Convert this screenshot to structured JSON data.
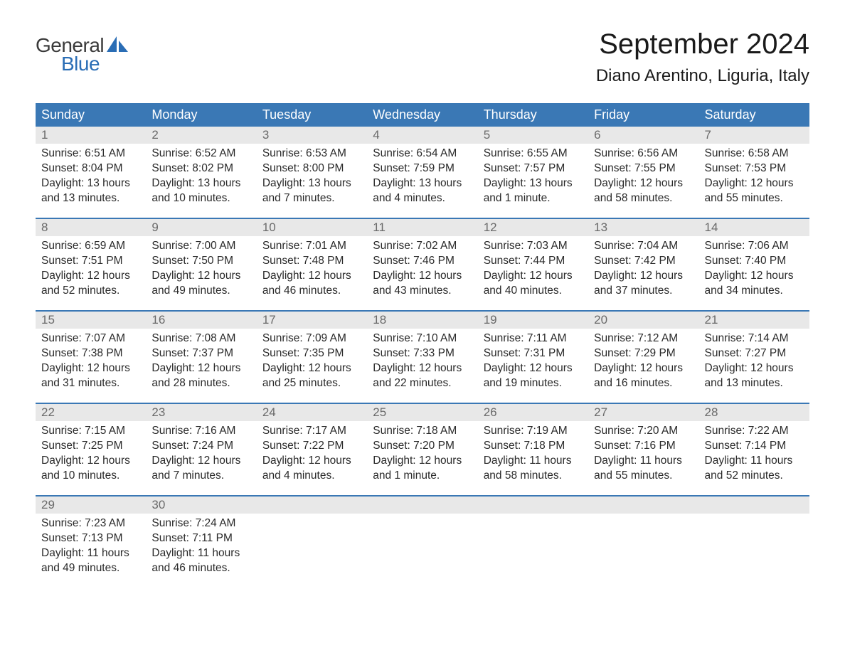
{
  "logo": {
    "text1": "General",
    "text2": "Blue",
    "sail_color": "#2a6db5"
  },
  "title": "September 2024",
  "location": "Diano Arentino, Liguria, Italy",
  "colors": {
    "header_bg": "#3a78b5",
    "header_text": "#ffffff",
    "daynum_bg": "#e8e8e8",
    "daynum_text": "#6a6a6a",
    "body_text": "#2a2a2a",
    "week_border": "#3a78b5",
    "background": "#ffffff"
  },
  "typography": {
    "title_fontsize": 40,
    "location_fontsize": 24,
    "weekday_fontsize": 18,
    "daynum_fontsize": 17,
    "content_fontsize": 15.5
  },
  "weekdays": [
    "Sunday",
    "Monday",
    "Tuesday",
    "Wednesday",
    "Thursday",
    "Friday",
    "Saturday"
  ],
  "weeks": [
    [
      {
        "n": "1",
        "sunrise": "6:51 AM",
        "sunset": "8:04 PM",
        "daylight": "13 hours and 13 minutes."
      },
      {
        "n": "2",
        "sunrise": "6:52 AM",
        "sunset": "8:02 PM",
        "daylight": "13 hours and 10 minutes."
      },
      {
        "n": "3",
        "sunrise": "6:53 AM",
        "sunset": "8:00 PM",
        "daylight": "13 hours and 7 minutes."
      },
      {
        "n": "4",
        "sunrise": "6:54 AM",
        "sunset": "7:59 PM",
        "daylight": "13 hours and 4 minutes."
      },
      {
        "n": "5",
        "sunrise": "6:55 AM",
        "sunset": "7:57 PM",
        "daylight": "13 hours and 1 minute."
      },
      {
        "n": "6",
        "sunrise": "6:56 AM",
        "sunset": "7:55 PM",
        "daylight": "12 hours and 58 minutes."
      },
      {
        "n": "7",
        "sunrise": "6:58 AM",
        "sunset": "7:53 PM",
        "daylight": "12 hours and 55 minutes."
      }
    ],
    [
      {
        "n": "8",
        "sunrise": "6:59 AM",
        "sunset": "7:51 PM",
        "daylight": "12 hours and 52 minutes."
      },
      {
        "n": "9",
        "sunrise": "7:00 AM",
        "sunset": "7:50 PM",
        "daylight": "12 hours and 49 minutes."
      },
      {
        "n": "10",
        "sunrise": "7:01 AM",
        "sunset": "7:48 PM",
        "daylight": "12 hours and 46 minutes."
      },
      {
        "n": "11",
        "sunrise": "7:02 AM",
        "sunset": "7:46 PM",
        "daylight": "12 hours and 43 minutes."
      },
      {
        "n": "12",
        "sunrise": "7:03 AM",
        "sunset": "7:44 PM",
        "daylight": "12 hours and 40 minutes."
      },
      {
        "n": "13",
        "sunrise": "7:04 AM",
        "sunset": "7:42 PM",
        "daylight": "12 hours and 37 minutes."
      },
      {
        "n": "14",
        "sunrise": "7:06 AM",
        "sunset": "7:40 PM",
        "daylight": "12 hours and 34 minutes."
      }
    ],
    [
      {
        "n": "15",
        "sunrise": "7:07 AM",
        "sunset": "7:38 PM",
        "daylight": "12 hours and 31 minutes."
      },
      {
        "n": "16",
        "sunrise": "7:08 AM",
        "sunset": "7:37 PM",
        "daylight": "12 hours and 28 minutes."
      },
      {
        "n": "17",
        "sunrise": "7:09 AM",
        "sunset": "7:35 PM",
        "daylight": "12 hours and 25 minutes."
      },
      {
        "n": "18",
        "sunrise": "7:10 AM",
        "sunset": "7:33 PM",
        "daylight": "12 hours and 22 minutes."
      },
      {
        "n": "19",
        "sunrise": "7:11 AM",
        "sunset": "7:31 PM",
        "daylight": "12 hours and 19 minutes."
      },
      {
        "n": "20",
        "sunrise": "7:12 AM",
        "sunset": "7:29 PM",
        "daylight": "12 hours and 16 minutes."
      },
      {
        "n": "21",
        "sunrise": "7:14 AM",
        "sunset": "7:27 PM",
        "daylight": "12 hours and 13 minutes."
      }
    ],
    [
      {
        "n": "22",
        "sunrise": "7:15 AM",
        "sunset": "7:25 PM",
        "daylight": "12 hours and 10 minutes."
      },
      {
        "n": "23",
        "sunrise": "7:16 AM",
        "sunset": "7:24 PM",
        "daylight": "12 hours and 7 minutes."
      },
      {
        "n": "24",
        "sunrise": "7:17 AM",
        "sunset": "7:22 PM",
        "daylight": "12 hours and 4 minutes."
      },
      {
        "n": "25",
        "sunrise": "7:18 AM",
        "sunset": "7:20 PM",
        "daylight": "12 hours and 1 minute."
      },
      {
        "n": "26",
        "sunrise": "7:19 AM",
        "sunset": "7:18 PM",
        "daylight": "11 hours and 58 minutes."
      },
      {
        "n": "27",
        "sunrise": "7:20 AM",
        "sunset": "7:16 PM",
        "daylight": "11 hours and 55 minutes."
      },
      {
        "n": "28",
        "sunrise": "7:22 AM",
        "sunset": "7:14 PM",
        "daylight": "11 hours and 52 minutes."
      }
    ],
    [
      {
        "n": "29",
        "sunrise": "7:23 AM",
        "sunset": "7:13 PM",
        "daylight": "11 hours and 49 minutes."
      },
      {
        "n": "30",
        "sunrise": "7:24 AM",
        "sunset": "7:11 PM",
        "daylight": "11 hours and 46 minutes."
      },
      {
        "empty": true
      },
      {
        "empty": true
      },
      {
        "empty": true
      },
      {
        "empty": true
      },
      {
        "empty": true
      }
    ]
  ],
  "labels": {
    "sunrise": "Sunrise:",
    "sunset": "Sunset:",
    "daylight": "Daylight:"
  }
}
